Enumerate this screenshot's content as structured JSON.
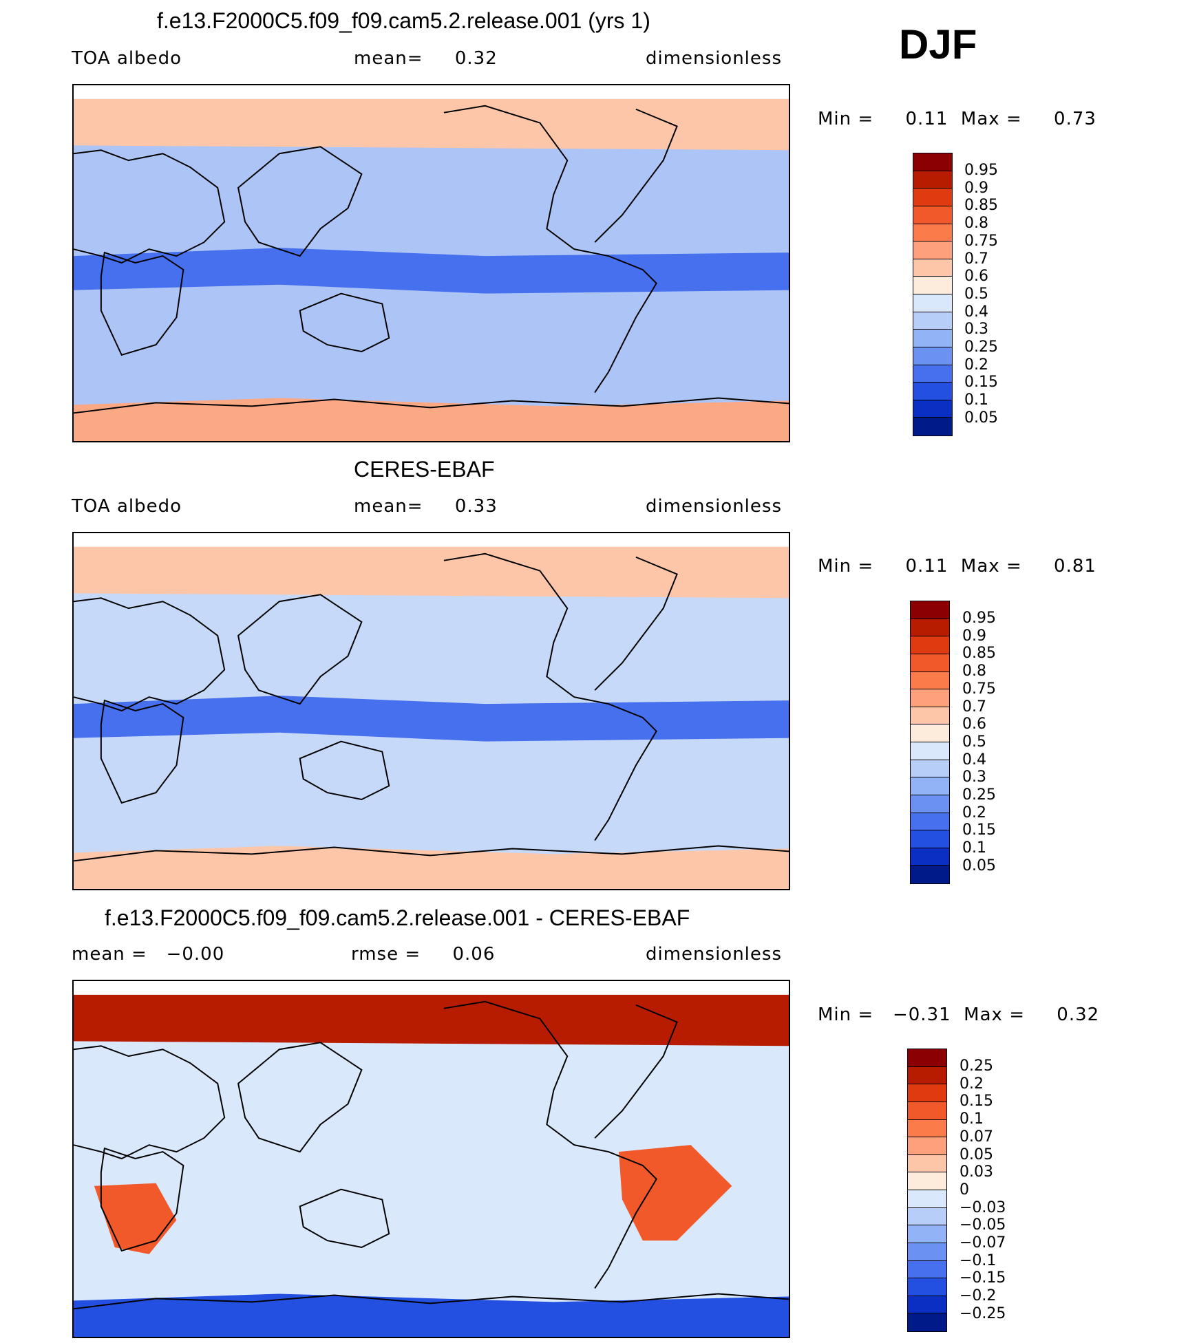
{
  "season": "DJF",
  "panels": [
    {
      "id": "model",
      "title": "f.e13.F2000C5.f09_f09.cam5.2.release.001 (yrs 1)",
      "left_label": "TOA albedo",
      "mid_label": "mean=     0.32",
      "right_label": "dimensionless",
      "minmax": "Min =     0.11  Max =     0.73",
      "colorbar": {
        "labels": [
          "0.95",
          "0.9",
          "0.85",
          "0.8",
          "0.75",
          "0.7",
          "0.6",
          "0.5",
          "0.4",
          "0.3",
          "0.25",
          "0.2",
          "0.15",
          "0.1",
          "0.05"
        ],
        "colors": [
          "#8b0000",
          "#b81c00",
          "#e03a10",
          "#f2592a",
          "#fb7b4a",
          "#fda07c",
          "#fdc6a8",
          "#fdecdc",
          "#d9e8fb",
          "#b7cff8",
          "#92b3f5",
          "#6b91f2",
          "#4670ee",
          "#2350e0",
          "#0a2fc2",
          "#001a8a"
        ]
      },
      "map": {
        "background": "#acc4f6",
        "regions": [
          {
            "name": "arctic-band",
            "value": 0.6,
            "color": "#fdc6a8"
          },
          {
            "name": "antarctic-band",
            "value": 0.7,
            "color": "#fba985"
          },
          {
            "name": "tropical-band",
            "value": 0.2,
            "color": "#4670ee"
          }
        ]
      }
    },
    {
      "id": "obs",
      "title": "CERES-EBAF",
      "left_label": "TOA albedo",
      "mid_label": "mean=     0.33",
      "right_label": "dimensionless",
      "minmax": "Min =     0.11  Max =     0.81",
      "colorbar": {
        "labels": [
          "0.95",
          "0.9",
          "0.85",
          "0.8",
          "0.75",
          "0.7",
          "0.6",
          "0.5",
          "0.4",
          "0.3",
          "0.25",
          "0.2",
          "0.15",
          "0.1",
          "0.05"
        ],
        "colors": [
          "#8b0000",
          "#b81c00",
          "#e03a10",
          "#f2592a",
          "#fb7b4a",
          "#fda07c",
          "#fdc6a8",
          "#fdecdc",
          "#d9e8fb",
          "#b7cff8",
          "#92b3f5",
          "#6b91f2",
          "#4670ee",
          "#2350e0",
          "#0a2fc2",
          "#001a8a"
        ]
      },
      "map": {
        "background": "#c6d9f9",
        "regions": [
          {
            "name": "arctic-band",
            "value": 0.6,
            "color": "#fdc6a8"
          },
          {
            "name": "antarctic-band",
            "value": 0.6,
            "color": "#fdc6a8"
          },
          {
            "name": "tropical-band",
            "value": 0.2,
            "color": "#4670ee"
          }
        ]
      }
    },
    {
      "id": "diff",
      "title": "f.e13.F2000C5.f09_f09.cam5.2.release.001 - CERES-EBAF",
      "left_label": "mean =   −0.00",
      "mid_label": "rmse =     0.06",
      "right_label": "dimensionless",
      "minmax": "Min =   −0.31  Max =     0.32",
      "colorbar": {
        "labels": [
          "0.25",
          "0.2",
          "0.15",
          "0.1",
          "0.07",
          "0.05",
          "0.03",
          "0",
          "−0.03",
          "−0.05",
          "−0.07",
          "−0.1",
          "−0.15",
          "−0.2",
          "−0.25"
        ],
        "colors": [
          "#8b0000",
          "#b81c00",
          "#e03a10",
          "#f2592a",
          "#fb7b4a",
          "#fda07c",
          "#fdc6a8",
          "#fdecdc",
          "#d9e8fb",
          "#b7cff8",
          "#92b3f5",
          "#6b91f2",
          "#4670ee",
          "#2350e0",
          "#0a2fc2",
          "#001a8a"
        ]
      },
      "map": {
        "background": "#d9e8fb",
        "regions": [
          {
            "name": "arctic-band",
            "value": 0.25,
            "color": "#b81c00"
          },
          {
            "name": "antarctic-band",
            "value": -0.15,
            "color": "#2350e0"
          },
          {
            "name": "africa-south",
            "value": 0.1,
            "color": "#f2592a"
          },
          {
            "name": "south-america",
            "value": 0.1,
            "color": "#f2592a"
          }
        ]
      }
    }
  ]
}
